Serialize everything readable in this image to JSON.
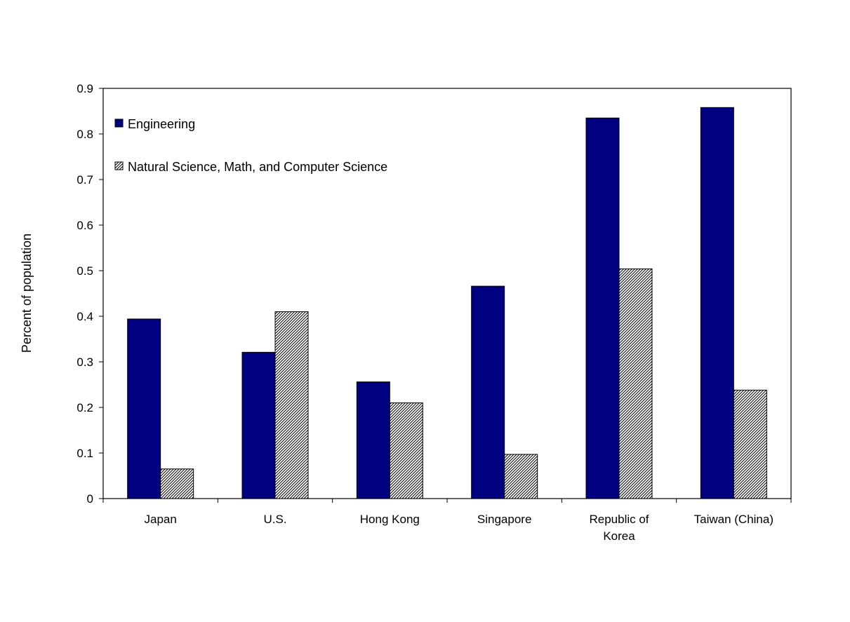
{
  "chart_data": {
    "type": "bar",
    "title": "",
    "xlabel": "",
    "ylabel": "Percent of population",
    "ylim": [
      0,
      0.9
    ],
    "yticks": [
      0,
      0.1,
      0.2,
      0.3,
      0.4,
      0.5,
      0.6,
      0.7,
      0.8,
      0.9
    ],
    "ytick_labels": [
      "0",
      "0.1",
      "0.2",
      "0.3",
      "0.4",
      "0.5",
      "0.6",
      "0.7",
      "0.8",
      "0.9"
    ],
    "grid": false,
    "legend_position": "top-left",
    "categories": [
      [
        "Japan"
      ],
      [
        "U.S."
      ],
      [
        "Hong Kong"
      ],
      [
        "Singapore"
      ],
      [
        "Republic of",
        "Korea"
      ],
      [
        "Taiwan (China)"
      ]
    ],
    "series": [
      {
        "name": "Engineering",
        "values": [
          0.394,
          0.321,
          0.256,
          0.466,
          0.835,
          0.858
        ],
        "color": "#000080",
        "pattern": "solid"
      },
      {
        "name": "Natural Science, Math, and Computer Science",
        "values": [
          0.065,
          0.41,
          0.21,
          0.097,
          0.504,
          0.238
        ],
        "color": "#ffffff",
        "pattern": "hatch"
      }
    ]
  }
}
